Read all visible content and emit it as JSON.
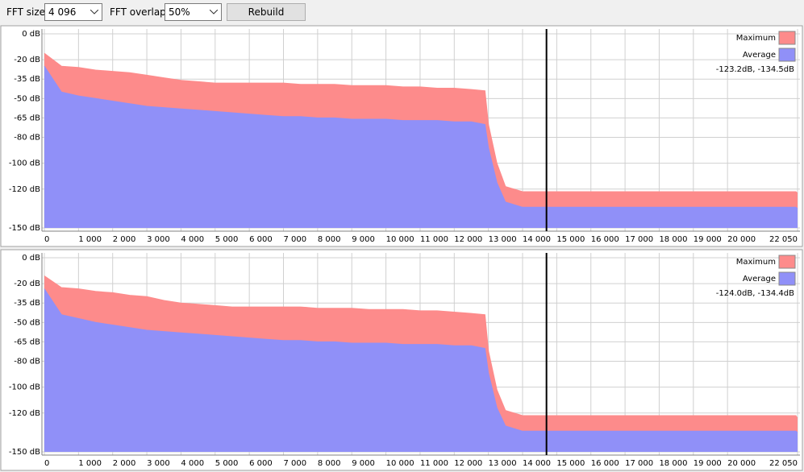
{
  "toolbar": {
    "fft_size_label": "FFT size:",
    "fft_size": "4 096",
    "fft_overlap_label": "FFT overlap:",
    "fft_overlap": "50%",
    "rebuild": "Rebuild"
  },
  "chart_data": [
    {
      "type": "area",
      "x": [
        0,
        500,
        1000,
        1500,
        2000,
        2500,
        3000,
        3500,
        4000,
        4500,
        5000,
        5500,
        6000,
        6500,
        7000,
        7500,
        8000,
        8500,
        9000,
        9500,
        10000,
        10500,
        11000,
        11500,
        12000,
        12500,
        12900,
        13000,
        13250,
        13500,
        14000,
        15000,
        16000,
        17000,
        18000,
        19000,
        20000,
        21000,
        22000,
        22050
      ],
      "series": [
        {
          "name": "Maximum",
          "color": "#fd8b8b",
          "values": [
            -15,
            -25,
            -26,
            -28,
            -29,
            -30,
            -32,
            -34,
            -36,
            -37,
            -38,
            -38,
            -38,
            -38,
            -38,
            -39,
            -39,
            -39,
            -40,
            -40,
            -40,
            -41,
            -41,
            -42,
            -42,
            -43,
            -44,
            -70,
            -100,
            -118,
            -122,
            -122,
            -122,
            -122,
            -122,
            -122,
            -122,
            -122,
            -122,
            -123
          ]
        },
        {
          "name": "Average",
          "color": "#9090f8",
          "values": [
            -25,
            -45,
            -48,
            -50,
            -52,
            -54,
            -56,
            -57,
            -58,
            -59,
            -60,
            -61,
            -62,
            -63,
            -64,
            -64,
            -65,
            -65,
            -66,
            -66,
            -66,
            -67,
            -67,
            -67,
            -68,
            -68,
            -70,
            -88,
            -115,
            -130,
            -134,
            -134,
            -134,
            -134,
            -134,
            -134,
            -134,
            -134,
            -134,
            -135
          ]
        }
      ],
      "readout": "-123.2dB, -134.5dB",
      "cursor_x": 14700,
      "xlim": [
        0,
        22050
      ],
      "ylim": [
        -150,
        0
      ],
      "xticks": [
        0,
        {
          "value": 1000,
          "label": "1 000"
        },
        {
          "value": 2000,
          "label": "2 000"
        },
        {
          "value": 3000,
          "label": "3 000"
        },
        {
          "value": 4000,
          "label": "4 000"
        },
        {
          "value": 5000,
          "label": "5 000"
        },
        {
          "value": 6000,
          "label": "6 000"
        },
        {
          "value": 7000,
          "label": "7 000"
        },
        {
          "value": 8000,
          "label": "8 000"
        },
        {
          "value": 9000,
          "label": "9 000"
        },
        {
          "value": 10000,
          "label": "10 000"
        },
        {
          "value": 11000,
          "label": "11 000"
        },
        {
          "value": 12000,
          "label": "12 000"
        },
        {
          "value": 13000,
          "label": "13 000"
        },
        {
          "value": 14000,
          "label": "14 000"
        },
        {
          "value": 15000,
          "label": "15 000"
        },
        {
          "value": 16000,
          "label": "16 000"
        },
        {
          "value": 17000,
          "label": "17 000"
        },
        {
          "value": 18000,
          "label": "18 000"
        },
        {
          "value": 19000,
          "label": "19 000"
        },
        {
          "value": 20000,
          "label": "20 000"
        },
        {
          "value": 22050,
          "label": "22 050"
        }
      ],
      "yticks": [
        {
          "value": 0,
          "label": "0 dB"
        },
        {
          "value": -20,
          "label": "-20 dB"
        },
        {
          "value": -35,
          "label": "-35 dB"
        },
        {
          "value": -50,
          "label": "-50 dB"
        },
        {
          "value": -65,
          "label": "-65 dB"
        },
        {
          "value": -80,
          "label": "-80 dB"
        },
        {
          "value": -100,
          "label": "-100 dB"
        },
        {
          "value": -120,
          "label": "-120 dB"
        },
        {
          "value": -150,
          "label": "-150 dB"
        }
      ],
      "grid": true
    },
    {
      "type": "area",
      "x": [
        0,
        500,
        1000,
        1500,
        2000,
        2500,
        3000,
        3500,
        4000,
        4500,
        5000,
        5500,
        6000,
        6500,
        7000,
        7500,
        8000,
        8500,
        9000,
        9500,
        10000,
        10500,
        11000,
        11500,
        12000,
        12500,
        12900,
        13000,
        13250,
        13500,
        14000,
        15000,
        16000,
        17000,
        18000,
        19000,
        20000,
        21000,
        22000,
        22050
      ],
      "series": [
        {
          "name": "Maximum",
          "color": "#fd8b8b",
          "values": [
            -14,
            -23,
            -24,
            -26,
            -27,
            -29,
            -30,
            -33,
            -35,
            -36,
            -37,
            -38,
            -38,
            -38,
            -38,
            -38,
            -39,
            -39,
            -39,
            -40,
            -40,
            -40,
            -41,
            -41,
            -42,
            -43,
            -44,
            -72,
            -102,
            -118,
            -122,
            -122,
            -122,
            -122,
            -122,
            -122,
            -122,
            -122,
            -122,
            -124
          ]
        },
        {
          "name": "Average",
          "color": "#9090f8",
          "values": [
            -24,
            -44,
            -47,
            -50,
            -52,
            -54,
            -56,
            -57,
            -58,
            -59,
            -60,
            -61,
            -62,
            -63,
            -64,
            -64,
            -65,
            -65,
            -66,
            -66,
            -66,
            -67,
            -67,
            -67,
            -68,
            -68,
            -70,
            -89,
            -116,
            -130,
            -134,
            -134,
            -134,
            -134,
            -134,
            -134,
            -134,
            -134,
            -134,
            -135
          ]
        }
      ],
      "readout": "-124.0dB, -134.4dB",
      "cursor_x": 14700,
      "xlim": [
        0,
        22050
      ],
      "ylim": [
        -150,
        0
      ],
      "xticks": [
        0,
        {
          "value": 1000,
          "label": "1 000"
        },
        {
          "value": 2000,
          "label": "2 000"
        },
        {
          "value": 3000,
          "label": "3 000"
        },
        {
          "value": 4000,
          "label": "4 000"
        },
        {
          "value": 5000,
          "label": "5 000"
        },
        {
          "value": 6000,
          "label": "6 000"
        },
        {
          "value": 7000,
          "label": "7 000"
        },
        {
          "value": 8000,
          "label": "8 000"
        },
        {
          "value": 9000,
          "label": "9 000"
        },
        {
          "value": 10000,
          "label": "10 000"
        },
        {
          "value": 11000,
          "label": "11 000"
        },
        {
          "value": 12000,
          "label": "12 000"
        },
        {
          "value": 13000,
          "label": "13 000"
        },
        {
          "value": 14000,
          "label": "14 000"
        },
        {
          "value": 15000,
          "label": "15 000"
        },
        {
          "value": 16000,
          "label": "16 000"
        },
        {
          "value": 17000,
          "label": "17 000"
        },
        {
          "value": 18000,
          "label": "18 000"
        },
        {
          "value": 19000,
          "label": "19 000"
        },
        {
          "value": 20000,
          "label": "20 000"
        },
        {
          "value": 22050,
          "label": "22 050"
        }
      ],
      "yticks": [
        {
          "value": 0,
          "label": "0 dB"
        },
        {
          "value": -20,
          "label": "-20 dB"
        },
        {
          "value": -35,
          "label": "-35 dB"
        },
        {
          "value": -50,
          "label": "-50 dB"
        },
        {
          "value": -65,
          "label": "-65 dB"
        },
        {
          "value": -80,
          "label": "-80 dB"
        },
        {
          "value": -100,
          "label": "-100 dB"
        },
        {
          "value": -120,
          "label": "-120 dB"
        },
        {
          "value": -150,
          "label": "-150 dB"
        }
      ],
      "grid": true
    }
  ]
}
